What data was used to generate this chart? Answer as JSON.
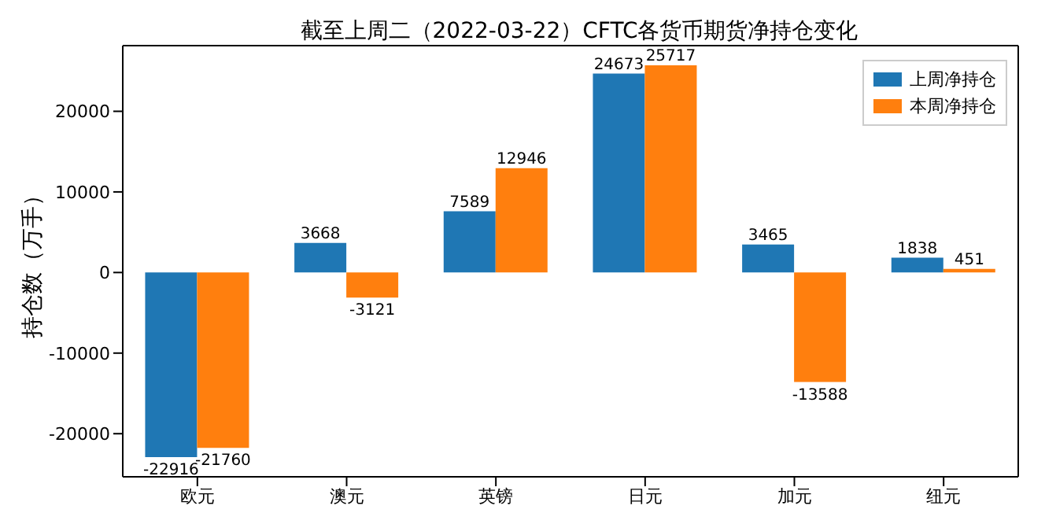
{
  "chart_data": {
    "type": "bar",
    "title": "截至上周二（2022-03-22）CFTC各货币期货净持仓变化",
    "ylabel": "持仓数（万手）",
    "categories": [
      "欧元",
      "澳元",
      "英镑",
      "日元",
      "加元",
      "纽元"
    ],
    "series": [
      {
        "name": "上周净持仓",
        "color": "#1f77b4",
        "values": [
          -22916,
          3668,
          7589,
          24673,
          3465,
          1838
        ]
      },
      {
        "name": "本周净持仓",
        "color": "#ff7f0e",
        "values": [
          -21760,
          -3121,
          12946,
          25717,
          -13588,
          451
        ]
      }
    ],
    "ylim": [
      -25348,
      28149
    ],
    "yticks": [
      -20000,
      -10000,
      0,
      10000,
      20000
    ],
    "legend": "top right",
    "data_labels": true
  }
}
